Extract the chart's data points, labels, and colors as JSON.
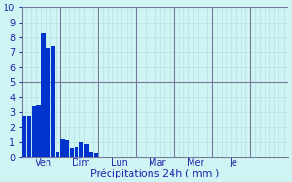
{
  "bar_values": [
    2.8,
    2.7,
    3.4,
    3.5,
    8.3,
    7.3,
    7.4,
    0.35,
    1.2,
    1.1,
    0.6,
    0.65,
    1.0,
    0.9,
    0.35,
    0.3,
    0.0,
    0.0,
    0.0,
    0.0,
    0.0,
    0.0,
    0.0,
    0.0,
    0.0,
    0.0,
    0.0,
    0.0,
    0.0,
    0.0,
    0.0,
    0.0,
    0.0,
    0.0,
    0.0,
    0.0,
    0.0,
    0.0,
    0.0,
    0.0,
    0.0,
    0.0,
    0.0,
    0.0,
    0.0,
    0.0,
    0.0,
    0.0,
    0.0,
    0.0,
    0.0,
    0.0,
    0.0,
    0.0,
    0.0,
    0.0
  ],
  "bar_color": "#0033cc",
  "background_color": "#cff4f4",
  "grid_minor_color": "#b0e0e0",
  "grid_major_color": "#777799",
  "xlabel": "Précipitations 24h ( mm )",
  "ylim": [
    0,
    10
  ],
  "yticks": [
    0,
    1,
    2,
    3,
    4,
    5,
    6,
    7,
    8,
    9,
    10
  ],
  "num_bars": 56,
  "bars_per_day": 8,
  "day_labels": [
    "Ven",
    "Dim",
    "Lun",
    "Mar",
    "Mer",
    "Je"
  ],
  "day_label_bar_centers": [
    4,
    12,
    20,
    28,
    36,
    44
  ],
  "day_boundary_bars": [
    8,
    16,
    24,
    32,
    40,
    48
  ],
  "tick_fontsize": 7,
  "xlabel_fontsize": 8
}
